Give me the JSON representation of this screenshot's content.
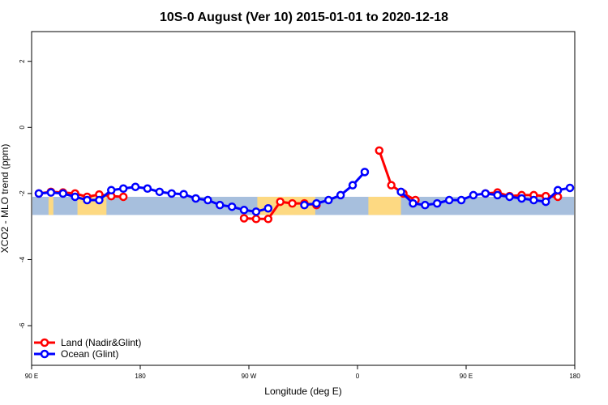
{
  "chart_data": {
    "type": "line",
    "title": "10S-0 August (Ver 10)   2015-01-01 to 2020-12-18",
    "xlabel": "Longitude (deg E)",
    "ylabel": "XCO2 - MLO trend (ppm)",
    "xlim": [
      90,
      540
    ],
    "ylim": [
      -7.2,
      2.9
    ],
    "x_ticks": [
      {
        "value": 90,
        "label": "90 E"
      },
      {
        "value": 180,
        "label": "180"
      },
      {
        "value": 270,
        "label": "90 W"
      },
      {
        "value": 360,
        "label": "0"
      },
      {
        "value": 450,
        "label": "90 E"
      },
      {
        "value": 540,
        "label": "180"
      }
    ],
    "y_ticks": [
      {
        "value": 2,
        "label": "2"
      },
      {
        "value": 0,
        "label": "0"
      },
      {
        "value": -2,
        "label": "-2"
      },
      {
        "value": -4,
        "label": "-4"
      },
      {
        "value": -6,
        "label": "-6"
      }
    ],
    "band": {
      "ymin": -2.65,
      "ymax": -2.1,
      "ocean_color": "#a7bfdd",
      "land_color": "#fdd982"
    },
    "land_spans": [
      [
        104,
        108
      ],
      [
        128,
        152
      ],
      [
        277,
        307
      ],
      [
        300,
        325
      ],
      [
        369,
        396
      ]
    ],
    "grid": false,
    "legend_position": "bottom-left",
    "series": [
      {
        "name": "Land (Nadir&Glint)",
        "color": "#ff0000",
        "segments": [
          [
            [
              96,
              -2.0
            ],
            [
              106,
              -1.95
            ],
            [
              116,
              -1.97
            ],
            [
              126,
              -2.0
            ],
            [
              136,
              -2.1
            ],
            [
              146,
              -2.03
            ],
            [
              156,
              -2.08
            ],
            [
              166,
              -2.1
            ]
          ],
          [
            [
              266,
              -2.75
            ],
            [
              276,
              -2.77
            ],
            [
              286,
              -2.77
            ],
            [
              296,
              -2.25
            ],
            [
              306,
              -2.3
            ],
            [
              316,
              -2.3
            ],
            [
              326,
              -2.35
            ]
          ],
          [
            [
              378,
              -0.7
            ],
            [
              388,
              -1.75
            ],
            [
              398,
              -2.0
            ],
            [
              408,
              -2.2
            ]
          ],
          [
            [
              466,
              -2.0
            ],
            [
              476,
              -1.97
            ],
            [
              486,
              -2.08
            ],
            [
              496,
              -2.05
            ],
            [
              506,
              -2.05
            ],
            [
              516,
              -2.08
            ],
            [
              526,
              -2.1
            ]
          ]
        ]
      },
      {
        "name": "Ocean (Glint)",
        "color": "#0000ff",
        "segments": [
          [
            [
              96,
              -2.0
            ],
            [
              106,
              -1.97
            ],
            [
              116,
              -2.0
            ],
            [
              126,
              -2.1
            ],
            [
              136,
              -2.2
            ],
            [
              146,
              -2.2
            ],
            [
              156,
              -1.9
            ],
            [
              166,
              -1.85
            ],
            [
              176,
              -1.8
            ],
            [
              186,
              -1.85
            ],
            [
              196,
              -1.95
            ],
            [
              206,
              -2.0
            ],
            [
              216,
              -2.02
            ],
            [
              226,
              -2.15
            ],
            [
              236,
              -2.2
            ],
            [
              246,
              -2.35
            ],
            [
              256,
              -2.4
            ],
            [
              266,
              -2.5
            ],
            [
              276,
              -2.55
            ],
            [
              286,
              -2.45
            ]
          ],
          [
            [
              316,
              -2.35
            ],
            [
              326,
              -2.3
            ],
            [
              336,
              -2.2
            ],
            [
              346,
              -2.05
            ],
            [
              356,
              -1.75
            ],
            [
              366,
              -1.35
            ]
          ],
          [
            [
              396,
              -1.95
            ],
            [
              406,
              -2.3
            ],
            [
              416,
              -2.35
            ],
            [
              426,
              -2.3
            ],
            [
              436,
              -2.2
            ],
            [
              446,
              -2.2
            ],
            [
              456,
              -2.05
            ],
            [
              466,
              -2.0
            ],
            [
              476,
              -2.05
            ],
            [
              486,
              -2.1
            ],
            [
              496,
              -2.15
            ],
            [
              506,
              -2.2
            ],
            [
              516,
              -2.25
            ],
            [
              526,
              -1.9
            ],
            [
              536,
              -1.83
            ],
            [
              546,
              -1.8
            ]
          ]
        ]
      }
    ]
  }
}
